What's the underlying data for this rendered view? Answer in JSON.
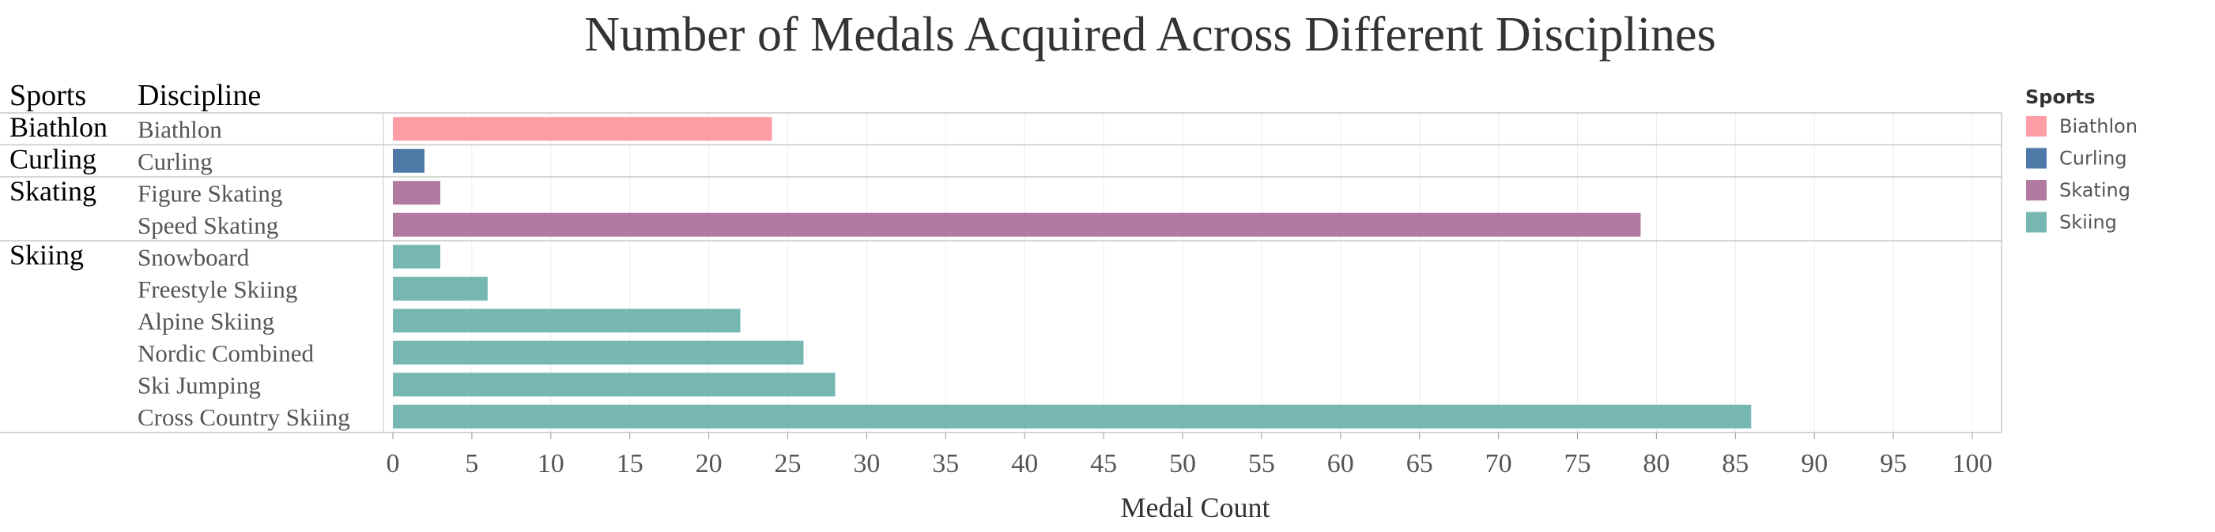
{
  "chart_data": {
    "type": "bar",
    "title": "Number of Medals Acquired Across Different Disciplines",
    "row_headers": {
      "sports": "Sports",
      "discipline": "Discipline"
    },
    "xlabel": "Medal Count",
    "xlim": [
      0,
      100
    ],
    "xticks": [
      0,
      5,
      10,
      15,
      20,
      25,
      30,
      35,
      40,
      45,
      50,
      55,
      60,
      65,
      70,
      75,
      80,
      85,
      90,
      95,
      100
    ],
    "grid": true,
    "orientation": "horizontal",
    "groups": [
      {
        "sport": "Biathlon",
        "color": "#FF9DA7",
        "rows": [
          {
            "discipline": "Biathlon",
            "value": 24
          }
        ]
      },
      {
        "sport": "Curling",
        "color": "#4E79A7",
        "rows": [
          {
            "discipline": "Curling",
            "value": 2
          }
        ]
      },
      {
        "sport": "Skating",
        "color": "#B07AA1",
        "rows": [
          {
            "discipline": "Figure Skating",
            "value": 3
          },
          {
            "discipline": "Speed Skating",
            "value": 79
          }
        ]
      },
      {
        "sport": "Skiing",
        "color": "#76B7B2",
        "rows": [
          {
            "discipline": "Snowboard",
            "value": 3
          },
          {
            "discipline": "Freestyle Skiing",
            "value": 6
          },
          {
            "discipline": "Alpine Skiing",
            "value": 22
          },
          {
            "discipline": "Nordic Combined",
            "value": 26
          },
          {
            "discipline": "Ski Jumping",
            "value": 28
          },
          {
            "discipline": "Cross Country Skiing",
            "value": 86
          }
        ]
      }
    ],
    "legend": {
      "title": "Sports",
      "position": "right",
      "items": [
        {
          "label": "Biathlon",
          "color": "#FF9DA7"
        },
        {
          "label": "Curling",
          "color": "#4E79A7"
        },
        {
          "label": "Skating",
          "color": "#B07AA1"
        },
        {
          "label": "Skiing",
          "color": "#76B7B2"
        }
      ]
    }
  }
}
